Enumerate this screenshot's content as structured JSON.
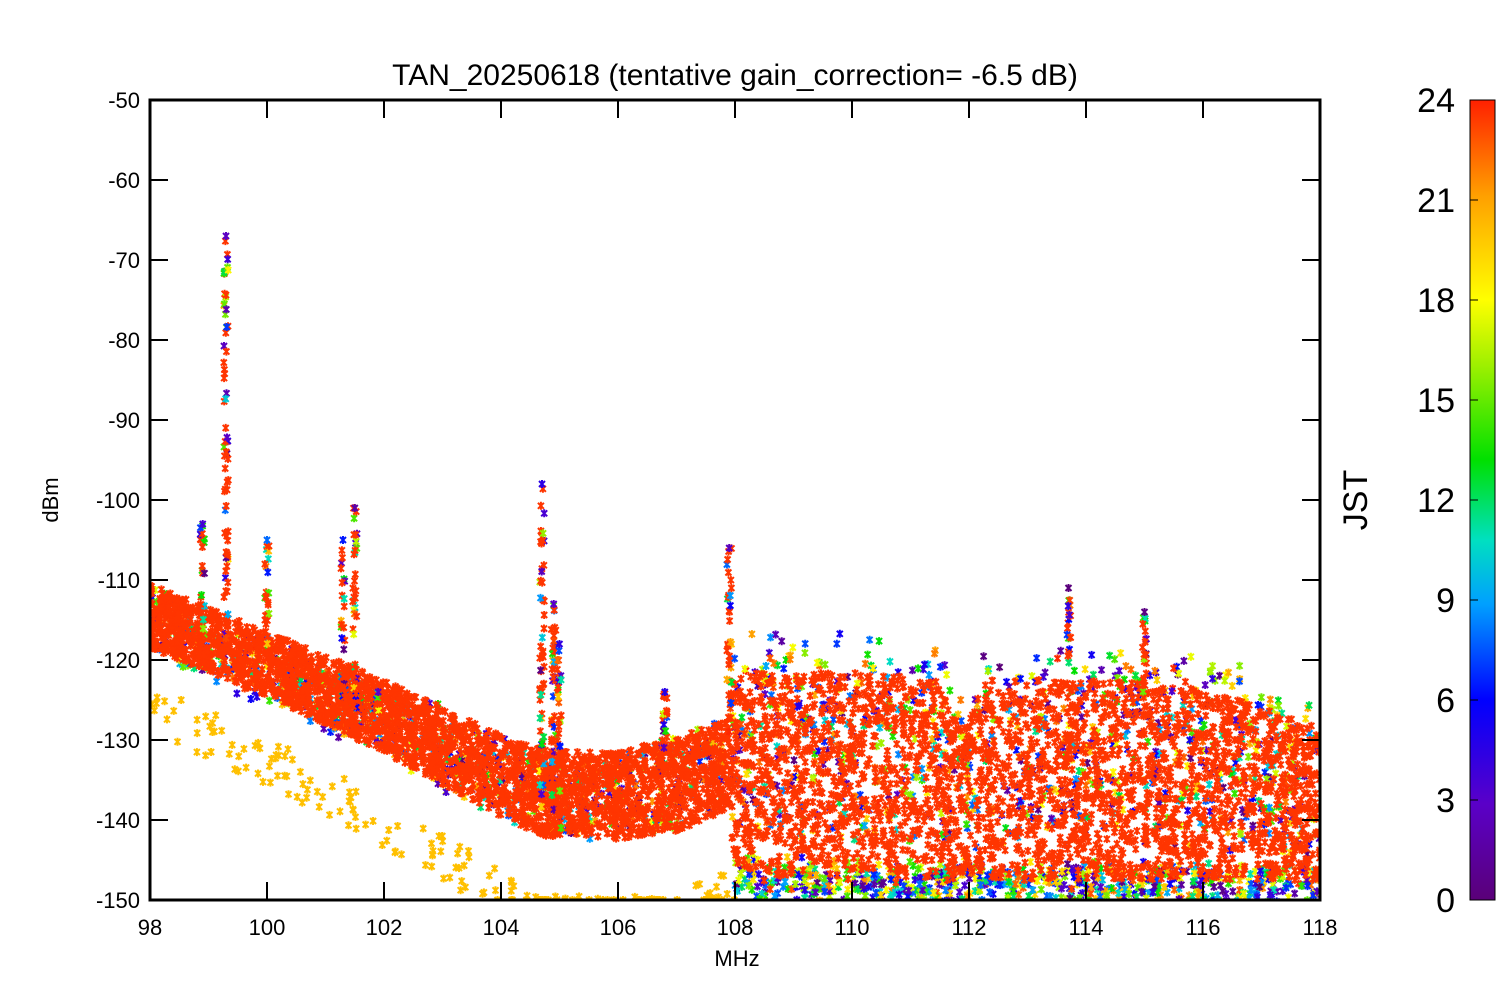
{
  "chart_data": {
    "type": "scatter",
    "title": "TAN_20250618 (tentative gain_correction= -6.5 dB)",
    "xlabel": "MHz",
    "ylabel": "dBm",
    "xlim": [
      98,
      118
    ],
    "ylim": [
      -150,
      -50
    ],
    "xticks": [
      "98",
      "100",
      "102",
      "104",
      "106",
      "108",
      "110",
      "112",
      "114",
      "116",
      "118"
    ],
    "yticks": [
      "-50",
      "-60",
      "-70",
      "-80",
      "-90",
      "-100",
      "-110",
      "-120",
      "-130",
      "-140",
      "-150"
    ],
    "grid": false,
    "marker": "asterisk",
    "colorbar": {
      "label": "JST",
      "range": [
        0,
        24
      ],
      "ticks": [
        "24",
        "21",
        "18",
        "15",
        "12",
        "9",
        "6",
        "3",
        "0"
      ],
      "colormap": "rainbow (purple → blue → cyan → green → yellow → orange → red)"
    },
    "series": [
      {
        "description_values": "noise floor envelope (dBm) vs frequency (MHz)",
        "floor_top_x": [
          98,
          100,
          102,
          104,
          104.9,
          105.1,
          106,
          107,
          107.9,
          108,
          110,
          111.5,
          111.9,
          112.3,
          114,
          116,
          118
        ],
        "floor_top_y": [
          -112,
          -118,
          -124,
          -131,
          -133,
          -133,
          -133,
          -131,
          -129,
          -123,
          -123,
          -124,
          -130,
          -124,
          -124,
          -125,
          -130
        ],
        "floor_bottom_x": [
          98,
          100,
          102,
          104,
          104.9,
          105.1,
          106,
          107,
          107.9,
          108,
          110,
          112,
          114,
          116,
          118
        ],
        "floor_bottom_y": [
          -118,
          -124,
          -131,
          -139,
          -142,
          -141,
          -142,
          -141,
          -138,
          -146,
          -147,
          -147,
          -147,
          -147,
          -147
        ]
      }
    ],
    "peaks": [
      {
        "x": 99.3,
        "top": -67,
        "bottom": -118
      },
      {
        "x": 98.9,
        "top": -103,
        "bottom": -118
      },
      {
        "x": 100.0,
        "top": -105,
        "bottom": -118
      },
      {
        "x": 101.3,
        "top": -105,
        "bottom": -125
      },
      {
        "x": 101.5,
        "top": -101,
        "bottom": -126
      },
      {
        "x": 101.9,
        "top": -124,
        "bottom": -128
      },
      {
        "x": 104.7,
        "top": -98,
        "bottom": -140
      },
      {
        "x": 104.9,
        "top": -113,
        "bottom": -141
      },
      {
        "x": 105.0,
        "top": -118,
        "bottom": -141
      },
      {
        "x": 106.8,
        "top": -124,
        "bottom": -131
      },
      {
        "x": 107.9,
        "top": -106,
        "bottom": -130
      },
      {
        "x": 113.7,
        "top": -111,
        "bottom": -120
      },
      {
        "x": 115.0,
        "top": -114,
        "bottom": -125
      }
    ],
    "lower_scatter": {
      "color_hour": 20,
      "x_range": [
        98,
        108
      ],
      "y_range": [
        -150,
        -123
      ]
    }
  }
}
